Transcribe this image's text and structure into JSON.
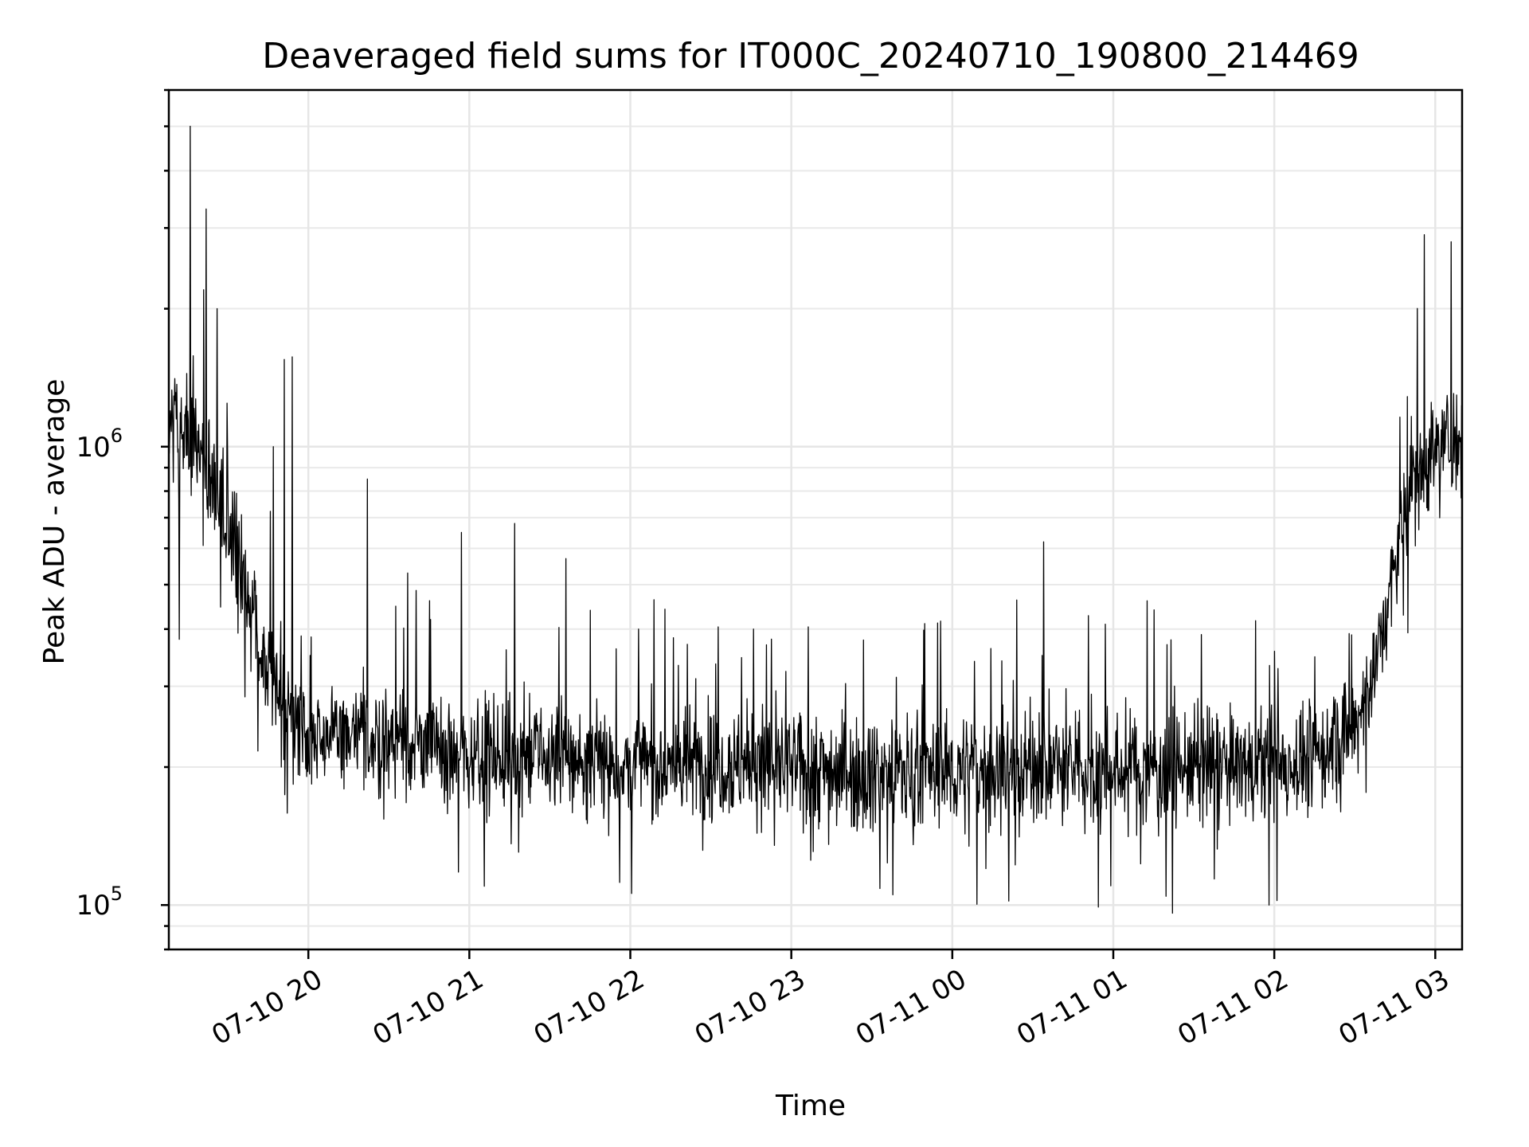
{
  "chart_data": {
    "type": "line",
    "title": "Deaveraged field sums for IT000C_20240710_190800_214469",
    "xlabel": "Time",
    "ylabel": "Peak ADU - average",
    "x_start": "2024-07-10 19:08",
    "x_end": "2024-07-11 03:10",
    "y_scale": "log",
    "ylim": [
      80000,
      6000000
    ],
    "grid": true,
    "line_color": "#000000",
    "x_ticks": [
      "07-10 20",
      "07-10 21",
      "07-10 22",
      "07-10 23",
      "07-11 00",
      "07-11 01",
      "07-11 02",
      "07-11 03"
    ],
    "y_ticks": [
      {
        "base": "10",
        "exp": "5"
      },
      {
        "base": "10",
        "exp": "6"
      }
    ],
    "series": [
      {
        "x": [
          "2024-07-10 19:08",
          "2024-07-10 19:15",
          "2024-07-10 19:20",
          "2024-07-10 19:25",
          "2024-07-10 19:30",
          "2024-07-10 19:35",
          "2024-07-10 19:40",
          "2024-07-10 19:45",
          "2024-07-10 19:50",
          "2024-07-10 20:00",
          "2024-07-10 20:30",
          "2024-07-10 21:00",
          "2024-07-10 21:30",
          "2024-07-10 22:00",
          "2024-07-10 22:30",
          "2024-07-10 23:00",
          "2024-07-10 23:30",
          "2024-07-11 00:00",
          "2024-07-11 00:30",
          "2024-07-11 01:00",
          "2024-07-11 01:30",
          "2024-07-11 02:00",
          "2024-07-11 02:15",
          "2024-07-11 02:30",
          "2024-07-11 02:40",
          "2024-07-11 02:45",
          "2024-07-11 02:50",
          "2024-07-11 03:00",
          "2024-07-11 03:10"
        ],
        "y": [
          1150000,
          1100000,
          950000,
          820000,
          680000,
          520000,
          420000,
          330000,
          280000,
          240000,
          230000,
          215000,
          210000,
          200000,
          205000,
          200000,
          195000,
          195000,
          200000,
          195000,
          200000,
          200000,
          210000,
          240000,
          380000,
          550000,
          800000,
          1000000,
          1050000
        ]
      }
    ],
    "spikes": [
      {
        "x": "2024-07-10 19:16",
        "y": 5000000
      },
      {
        "x": "2024-07-10 19:22",
        "y": 3300000
      },
      {
        "x": "2024-07-10 19:21",
        "y": 2200000
      },
      {
        "x": "2024-07-10 19:26",
        "y": 2000000
      },
      {
        "x": "2024-07-10 19:12",
        "y": 380000
      },
      {
        "x": "2024-07-10 19:47",
        "y": 1000000
      },
      {
        "x": "2024-07-10 19:51",
        "y": 1550000
      },
      {
        "x": "2024-07-10 19:54",
        "y": 1570000
      },
      {
        "x": "2024-07-10 20:22",
        "y": 850000
      },
      {
        "x": "2024-07-10 20:37",
        "y": 530000
      },
      {
        "x": "2024-07-10 20:57",
        "y": 650000
      },
      {
        "x": "2024-07-10 21:17",
        "y": 680000
      },
      {
        "x": "2024-07-10 21:36",
        "y": 570000
      },
      {
        "x": "2024-07-10 22:03",
        "y": 400000
      },
      {
        "x": "2024-07-10 22:46",
        "y": 400000
      },
      {
        "x": "2024-07-11 00:34",
        "y": 620000
      },
      {
        "x": "2024-07-11 00:57",
        "y": 410000
      },
      {
        "x": "2024-07-11 01:20",
        "y": 370000
      },
      {
        "x": "2024-07-11 02:56",
        "y": 2900000
      },
      {
        "x": "2024-07-11 03:06",
        "y": 2800000
      },
      {
        "x": "2024-07-10 20:56",
        "y": 118000
      },
      {
        "x": "2024-07-10 21:56",
        "y": 112000
      },
      {
        "x": "2024-07-11 00:21",
        "y": 102000
      },
      {
        "x": "2024-07-11 01:22",
        "y": 96000
      },
      {
        "x": "2024-07-11 01:58",
        "y": 100000
      }
    ]
  }
}
